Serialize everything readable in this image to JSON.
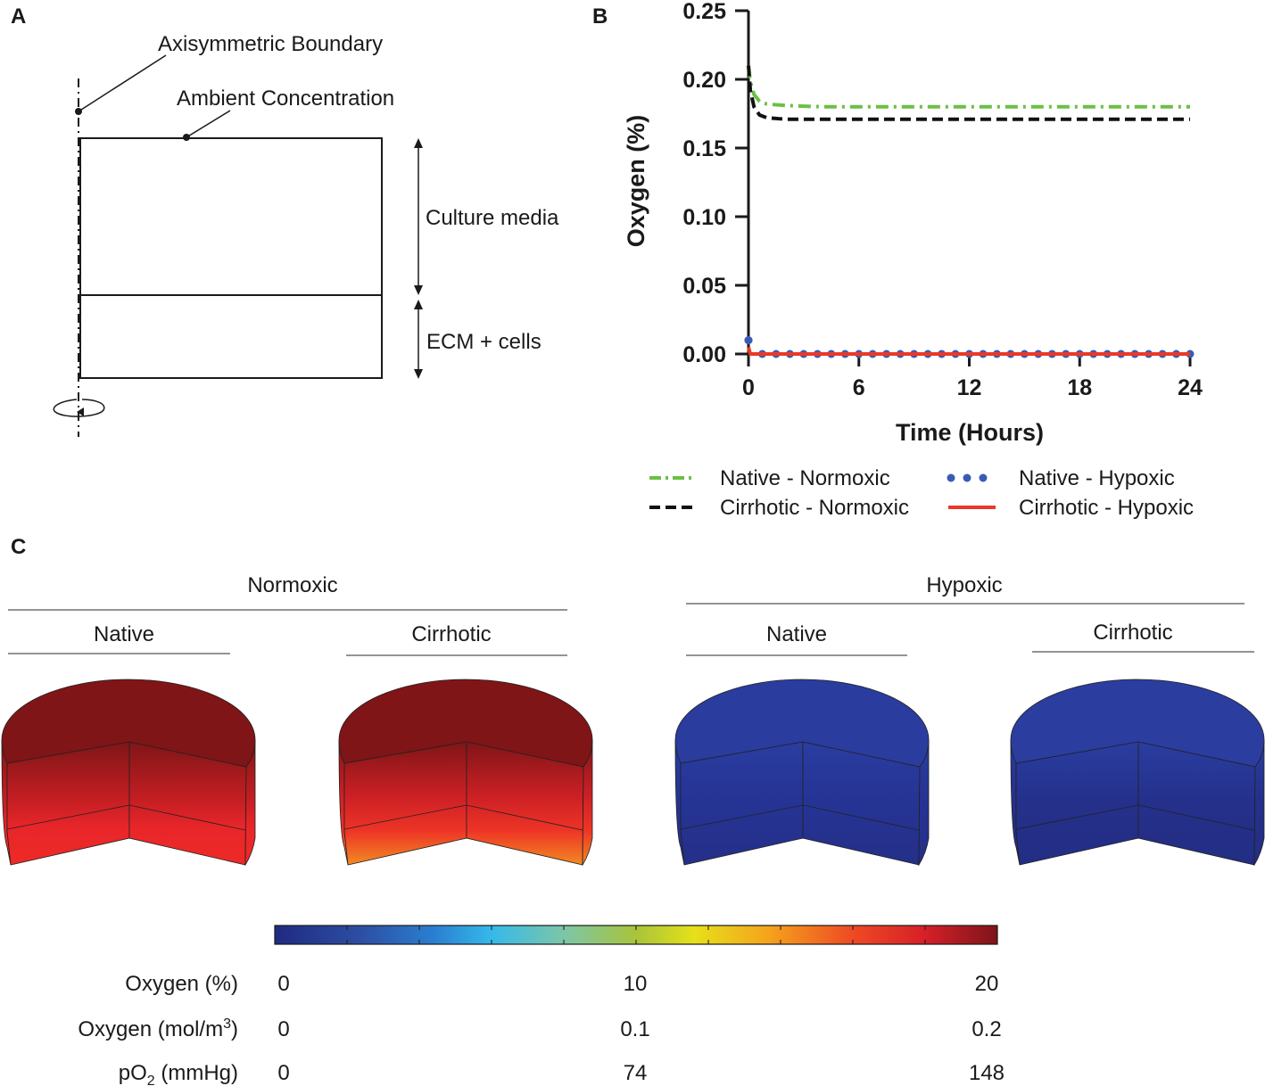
{
  "panels": {
    "a": "A",
    "b": "B",
    "c": "C"
  },
  "schematic": {
    "axisymmetric_label": "Axisymmetric Boundary",
    "ambient_label": "Ambient Concentration",
    "culture_label": "Culture media",
    "ecm_label": "ECM + cells"
  },
  "chart_data": {
    "type": "line",
    "xlabel": "Time (Hours)",
    "ylabel": "Oxygen (%)",
    "xlim": [
      0,
      24
    ],
    "ylim": [
      0,
      0.25
    ],
    "xticks": [
      0,
      6,
      12,
      18,
      24
    ],
    "yticks": [
      0.0,
      0.05,
      0.1,
      0.15,
      0.2,
      0.25
    ],
    "ytick_labels": [
      "0.00",
      "0.05",
      "0.10",
      "0.15",
      "0.20",
      "0.25"
    ],
    "series": [
      {
        "name": "Native - Normoxic",
        "color": "#6cbf45",
        "style": "dashdot",
        "x": [
          0,
          0.1,
          0.3,
          0.6,
          1,
          2,
          4,
          8,
          12,
          16,
          20,
          24
        ],
        "y": [
          0.21,
          0.198,
          0.189,
          0.184,
          0.182,
          0.181,
          0.18,
          0.18,
          0.18,
          0.18,
          0.18,
          0.18
        ]
      },
      {
        "name": "Cirrhotic - Normoxic",
        "color": "#111111",
        "style": "dashed",
        "x": [
          0,
          0.1,
          0.3,
          0.6,
          1,
          2,
          4,
          8,
          12,
          16,
          20,
          24
        ],
        "y": [
          0.21,
          0.192,
          0.18,
          0.174,
          0.172,
          0.171,
          0.171,
          0.171,
          0.171,
          0.171,
          0.171,
          0.171
        ]
      },
      {
        "name": "Native - Hypoxic",
        "color": "#3a5bb5",
        "style": "dotted",
        "x": [
          0,
          0.25,
          24
        ],
        "y": [
          0.01,
          0.0,
          0.0
        ]
      },
      {
        "name": "Cirrhotic - Hypoxic",
        "color": "#e8392b",
        "style": "solid",
        "x": [
          0,
          0.1,
          24
        ],
        "y": [
          0.005,
          0.0,
          0.0
        ]
      }
    ]
  },
  "heatmaps": {
    "normoxic_label": "Normoxic",
    "hypoxic_label": "Hypoxic",
    "native_label": "Native",
    "cirrhotic_label": "Cirrhotic"
  },
  "colorbar": {
    "rows": [
      {
        "label": "Oxygen (%)",
        "min": "0",
        "mid": "10",
        "max": "20"
      },
      {
        "label_main": "Oxygen (mol/m",
        "label_sup": "3",
        "label_end": ")",
        "min": "0",
        "mid": "0.1",
        "max": "0.2"
      },
      {
        "label_main": "pO",
        "label_sub": "2",
        "label_end": " (mmHg)",
        "min": "0",
        "mid": "74",
        "max": "148"
      }
    ]
  }
}
